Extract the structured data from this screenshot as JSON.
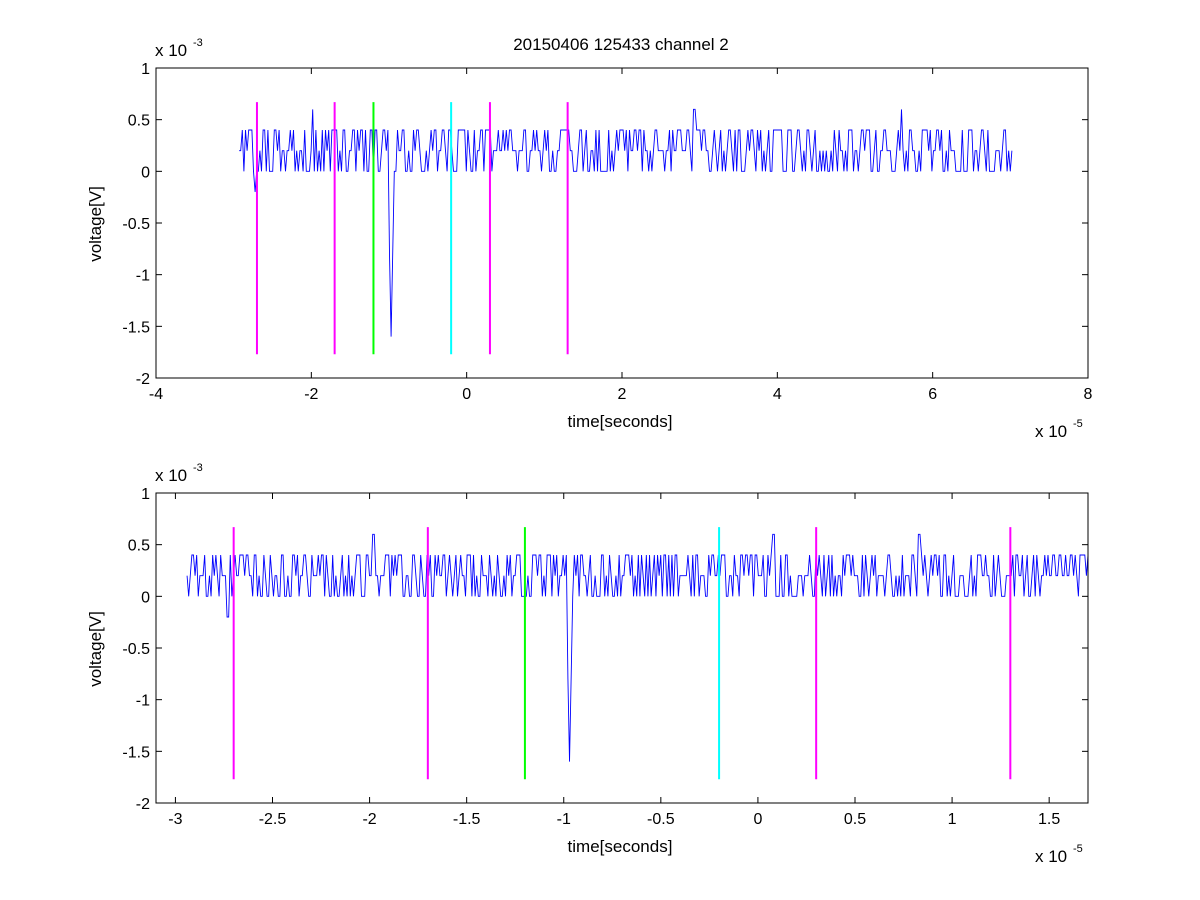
{
  "title": "20150406 125433 channel 2",
  "chart_data": [
    {
      "type": "line",
      "title": "20150406 125433 channel 2",
      "xlabel": "time[seconds]",
      "ylabel": "voltage[V]",
      "x_exponent_label": "x 10",
      "x_exponent_power": "-5",
      "y_exponent_label": "x 10",
      "y_exponent_power": "-3",
      "xlim": [
        -4,
        8
      ],
      "ylim": [
        -2,
        1
      ],
      "x_scale_note": "values in units of 1e-5 s",
      "y_scale_note": "values in units of 1e-3 V",
      "xticks": [
        "-4",
        "-2",
        "0",
        "2",
        "4",
        "6",
        "8"
      ],
      "yticks": [
        "-2",
        "-1.5",
        "-1",
        "-0.5",
        "0",
        "0.5",
        "1"
      ],
      "grid": false,
      "series": [
        {
          "color": "#0000ff",
          "x_start": -2.93,
          "x_end": 7.02,
          "baseline": 0.2,
          "levels": [
            -0.2,
            0.0,
            0.2,
            0.4,
            0.6
          ],
          "spikes": [
            {
              "x": -2.72,
              "y": -0.2
            },
            {
              "x": -1.98,
              "y": 0.6
            },
            {
              "x": -0.97,
              "y": -1.6
            },
            {
              "x": 2.93,
              "y": 0.6
            },
            {
              "x": 5.6,
              "y": 0.6
            }
          ]
        }
      ],
      "markers": [
        {
          "x": -2.7,
          "color": "#ff00ff",
          "y_top": 0.67,
          "y_bottom": -1.77
        },
        {
          "x": -1.7,
          "color": "#ff00ff",
          "y_top": 0.67,
          "y_bottom": -1.77
        },
        {
          "x": -1.2,
          "color": "#00ff00",
          "y_top": 0.67,
          "y_bottom": -1.77
        },
        {
          "x": -0.2,
          "color": "#00ffff",
          "y_top": 0.67,
          "y_bottom": -1.77
        },
        {
          "x": 0.3,
          "color": "#ff00ff",
          "y_top": 0.67,
          "y_bottom": -1.77
        },
        {
          "x": 1.3,
          "color": "#ff00ff",
          "y_top": 0.67,
          "y_bottom": -1.77
        }
      ]
    },
    {
      "type": "line",
      "title": "",
      "xlabel": "time[seconds]",
      "ylabel": "voltage[V]",
      "x_exponent_label": "x 10",
      "x_exponent_power": "-5",
      "y_exponent_label": "x 10",
      "y_exponent_power": "-3",
      "xlim": [
        -3.1,
        1.7
      ],
      "ylim": [
        -2,
        1
      ],
      "x_scale_note": "values in units of 1e-5 s",
      "y_scale_note": "values in units of 1e-3 V",
      "xticks": [
        "-3",
        "-2.5",
        "-2",
        "-1.5",
        "-1",
        "-0.5",
        "0",
        "0.5",
        "1",
        "1.5"
      ],
      "yticks": [
        "-2",
        "-1.5",
        "-1",
        "-0.5",
        "0",
        "0.5",
        "1"
      ],
      "grid": false,
      "series": [
        {
          "color": "#0000ff",
          "x_start": -2.94,
          "x_end": 1.7,
          "baseline": 0.2,
          "levels": [
            -0.2,
            0.0,
            0.2,
            0.4,
            0.6
          ],
          "spikes": [
            {
              "x": -2.73,
              "y": -0.2
            },
            {
              "x": -1.98,
              "y": 0.6
            },
            {
              "x": -0.97,
              "y": -1.6
            },
            {
              "x": 0.08,
              "y": 0.6
            },
            {
              "x": 0.83,
              "y": 0.6
            }
          ]
        }
      ],
      "markers": [
        {
          "x": -2.7,
          "color": "#ff00ff",
          "y_top": 0.67,
          "y_bottom": -1.77
        },
        {
          "x": -1.7,
          "color": "#ff00ff",
          "y_top": 0.67,
          "y_bottom": -1.77
        },
        {
          "x": -1.2,
          "color": "#00ff00",
          "y_top": 0.67,
          "y_bottom": -1.77
        },
        {
          "x": -0.2,
          "color": "#00ffff",
          "y_top": 0.67,
          "y_bottom": -1.77
        },
        {
          "x": 0.3,
          "color": "#ff00ff",
          "y_top": 0.67,
          "y_bottom": -1.77
        },
        {
          "x": 1.3,
          "color": "#ff00ff",
          "y_top": 0.67,
          "y_bottom": -1.77
        }
      ]
    }
  ]
}
